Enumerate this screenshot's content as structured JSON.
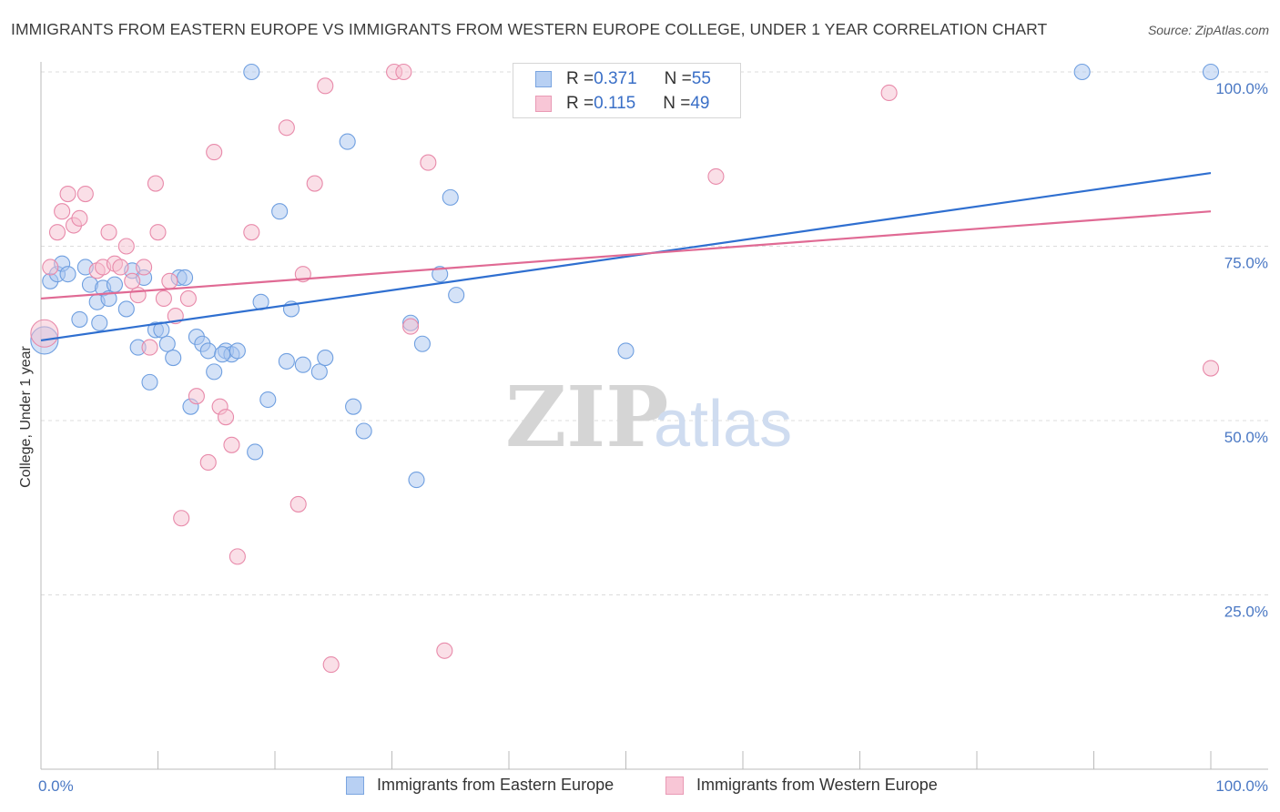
{
  "title": "IMMIGRANTS FROM EASTERN EUROPE VS IMMIGRANTS FROM WESTERN EUROPE COLLEGE, UNDER 1 YEAR CORRELATION CHART",
  "source": "Source: ZipAtlas.com",
  "watermark": {
    "zip": "ZIP",
    "atlas": "atlas"
  },
  "legend": {
    "rows": [
      {
        "r_label": "R = ",
        "r_value": "0.371",
        "n_label": "N = ",
        "n_value": "55"
      },
      {
        "r_label": "R = ",
        "r_value": "0.115",
        "n_label": "N = ",
        "n_value": "49"
      }
    ]
  },
  "chart_data": {
    "type": "scatter",
    "title": "IMMIGRANTS FROM EASTERN EUROPE VS IMMIGRANTS FROM WESTERN EUROPE COLLEGE, UNDER 1 YEAR CORRELATION CHART",
    "xlabel": "",
    "ylabel": "College, Under 1 year",
    "xlim": [
      0,
      100
    ],
    "ylim": [
      0,
      100
    ],
    "x_tick_labels": [
      "0.0%",
      "100.0%"
    ],
    "y_tick_labels": [
      "100.0%",
      "75.0%",
      "50.0%",
      "25.0%"
    ],
    "y_tick_values": [
      100,
      75,
      50,
      25
    ],
    "grid": true,
    "legend_position": "top-center",
    "series": [
      {
        "name": "Immigrants from Eastern Europe",
        "color": "#6f9fe0",
        "fill": "#a9c6f0",
        "r": 0.371,
        "n": 55,
        "trend": {
          "x0": 0,
          "y0": 61.5,
          "x1": 100,
          "y1": 85.5,
          "color": "#2f6fd0"
        },
        "points": [
          [
            0.3,
            61.5
          ],
          [
            0.8,
            70
          ],
          [
            1.4,
            71
          ],
          [
            1.8,
            72.5
          ],
          [
            2.3,
            71
          ],
          [
            3.3,
            64.5
          ],
          [
            3.8,
            72
          ],
          [
            4.2,
            69.5
          ],
          [
            4.8,
            67
          ],
          [
            5.3,
            69
          ],
          [
            5.8,
            67.5
          ],
          [
            6.3,
            69.5
          ],
          [
            7.3,
            66
          ],
          [
            7.8,
            71.5
          ],
          [
            8.3,
            60.5
          ],
          [
            8.8,
            70.5
          ],
          [
            9.3,
            55.5
          ],
          [
            9.8,
            63
          ],
          [
            10.3,
            63
          ],
          [
            10.8,
            61
          ],
          [
            11.3,
            59
          ],
          [
            11.8,
            70.5
          ],
          [
            12.3,
            70.5
          ],
          [
            12.8,
            52
          ],
          [
            13.3,
            62
          ],
          [
            13.8,
            61
          ],
          [
            14.3,
            60
          ],
          [
            14.8,
            57
          ],
          [
            15.8,
            60
          ],
          [
            16.3,
            59.5
          ],
          [
            16.8,
            60
          ],
          [
            18.0,
            100
          ],
          [
            18.3,
            45.5
          ],
          [
            18.8,
            67
          ],
          [
            19.4,
            53
          ],
          [
            20.4,
            80
          ],
          [
            21.0,
            58.5
          ],
          [
            21.4,
            66
          ],
          [
            22.4,
            58
          ],
          [
            23.8,
            57
          ],
          [
            24.3,
            59
          ],
          [
            26.2,
            90
          ],
          [
            26.7,
            52
          ],
          [
            27.6,
            48.5
          ],
          [
            31.6,
            64
          ],
          [
            32.1,
            41.5
          ],
          [
            32.6,
            61
          ],
          [
            34.1,
            71
          ],
          [
            35.0,
            82
          ],
          [
            35.5,
            68
          ],
          [
            50.0,
            60
          ],
          [
            89.0,
            100
          ],
          [
            100.0,
            100
          ],
          [
            5.0,
            64
          ],
          [
            15.5,
            59.5
          ]
        ]
      },
      {
        "name": "Immigrants from Western Europe",
        "color": "#e88aaa",
        "fill": "#f6bfd0",
        "r": 0.115,
        "n": 49,
        "trend": {
          "x0": 0,
          "y0": 67.5,
          "x1": 100,
          "y1": 80,
          "color": "#e06a94"
        },
        "points": [
          [
            0.3,
            62.5
          ],
          [
            0.8,
            72
          ],
          [
            1.4,
            77
          ],
          [
            1.8,
            80
          ],
          [
            2.3,
            82.5
          ],
          [
            2.8,
            78
          ],
          [
            3.3,
            79
          ],
          [
            3.8,
            82.5
          ],
          [
            4.8,
            71.5
          ],
          [
            5.3,
            72
          ],
          [
            5.8,
            77
          ],
          [
            6.3,
            72.5
          ],
          [
            6.8,
            72
          ],
          [
            7.3,
            75
          ],
          [
            7.8,
            70
          ],
          [
            8.3,
            68
          ],
          [
            8.8,
            72
          ],
          [
            9.3,
            60.5
          ],
          [
            9.8,
            84
          ],
          [
            10.0,
            77
          ],
          [
            11.0,
            70
          ],
          [
            11.5,
            65
          ],
          [
            12.0,
            36
          ],
          [
            12.6,
            67.5
          ],
          [
            13.3,
            53.5
          ],
          [
            14.3,
            44
          ],
          [
            14.8,
            88.5
          ],
          [
            15.3,
            52
          ],
          [
            15.8,
            50.5
          ],
          [
            16.3,
            46.5
          ],
          [
            16.8,
            30.5
          ],
          [
            18.0,
            77
          ],
          [
            21.0,
            92
          ],
          [
            22.0,
            38
          ],
          [
            22.4,
            71
          ],
          [
            23.4,
            84
          ],
          [
            24.3,
            98
          ],
          [
            24.8,
            15
          ],
          [
            30.2,
            100
          ],
          [
            31.0,
            100
          ],
          [
            31.6,
            63.5
          ],
          [
            33.1,
            87
          ],
          [
            34.5,
            17
          ],
          [
            48.0,
            100
          ],
          [
            57.0,
            100
          ],
          [
            57.7,
            85
          ],
          [
            72.5,
            97
          ],
          [
            100.0,
            57.5
          ],
          [
            10.5,
            67.5
          ]
        ]
      }
    ]
  }
}
